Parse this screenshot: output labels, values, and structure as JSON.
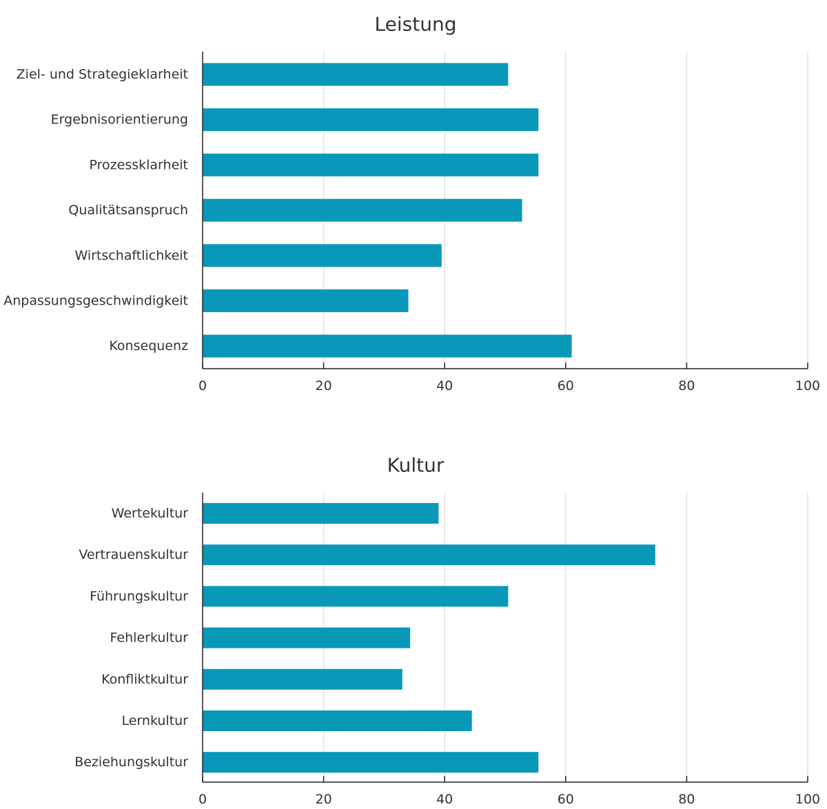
{
  "colors": {
    "bar": "#0a98b9",
    "axis": "#222222",
    "grid": "#e3e3e3",
    "text": "#333333"
  },
  "chart_data": [
    {
      "type": "bar",
      "orientation": "horizontal",
      "title": "Leistung",
      "xlabel": "",
      "ylabel": "",
      "xlim": [
        0,
        100
      ],
      "xticks": [
        0,
        20,
        40,
        60,
        80,
        100
      ],
      "grid": true,
      "categories": [
        "Ziel- und Strategieklarheit",
        "Ergebnisorientierung",
        "Prozessklarheit",
        "Qualitätsanspruch",
        "Wirtschaftlichkeit",
        "Anpassungsgeschwindigkeit",
        "Konsequenz"
      ],
      "values": [
        50.5,
        55.5,
        55.5,
        52.8,
        39.5,
        34,
        61
      ]
    },
    {
      "type": "bar",
      "orientation": "horizontal",
      "title": "Kultur",
      "xlabel": "",
      "ylabel": "",
      "xlim": [
        0,
        100
      ],
      "xticks": [
        0,
        20,
        40,
        60,
        80,
        100
      ],
      "grid": true,
      "categories": [
        "Wertekultur",
        "Vertrauenskultur",
        "Führungskultur",
        "Fehlerkultur",
        "Konfliktkultur",
        "Lernkultur",
        "Beziehungskultur"
      ],
      "values": [
        39,
        74.8,
        50.5,
        34.3,
        33,
        44.5,
        55.5
      ]
    }
  ]
}
